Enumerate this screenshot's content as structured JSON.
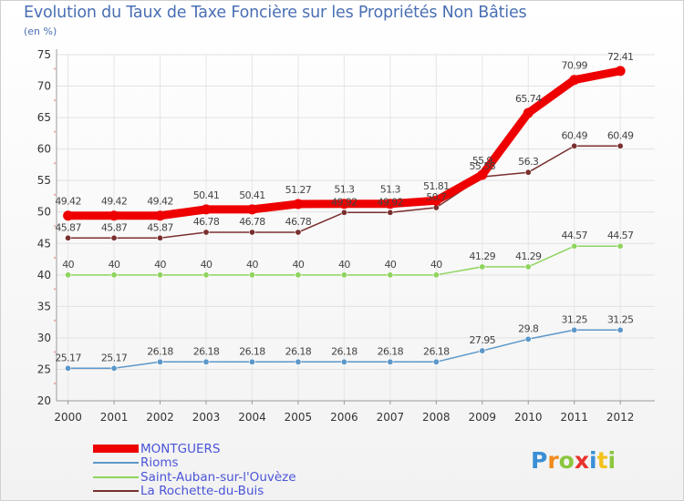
{
  "chart_data": {
    "type": "line",
    "title": "Evolution du Taux de Taxe Foncière sur les Propriétés Non Bâties",
    "subtitle": "(en %)",
    "xlabel": "",
    "ylabel": "(en %)",
    "categories": [
      "2000",
      "2001",
      "2002",
      "2003",
      "2004",
      "2005",
      "2006",
      "2007",
      "2008",
      "2009",
      "2010",
      "2011",
      "2012"
    ],
    "ylim": [
      20,
      75
    ],
    "yticks": [
      "20",
      "25",
      "30",
      "35",
      "40",
      "45",
      "50",
      "55",
      "60",
      "65",
      "70",
      "75"
    ],
    "grid": true,
    "legend_position": "bottom-left",
    "series": [
      {
        "name": "MONTGUERS",
        "color": "#ee0000",
        "values": [
          49.42,
          49.42,
          49.42,
          50.41,
          50.41,
          51.27,
          51.3,
          51.3,
          51.81,
          55.9,
          65.74,
          70.99,
          72.41
        ],
        "labels": [
          "49.42",
          "49.42",
          "49.42",
          "50.41",
          "50.41",
          "51.27",
          "51.3",
          "51.3",
          "51.81",
          "55.9",
          "65.74",
          "70.99",
          "72.41"
        ]
      },
      {
        "name": "Rioms",
        "color": "#5b97c9",
        "values": [
          25.17,
          25.17,
          26.18,
          26.18,
          26.18,
          26.18,
          26.18,
          26.18,
          26.18,
          27.95,
          29.8,
          31.25,
          31.25
        ],
        "labels": [
          "25.17",
          "25.17",
          "26.18",
          "26.18",
          "26.18",
          "26.18",
          "26.18",
          "26.18",
          "26.18",
          "27.95",
          "29.8",
          "31.25",
          "31.25"
        ]
      },
      {
        "name": "Saint-Auban-sur-l'Ouvèze",
        "color": "#8fd45e",
        "values": [
          40,
          40,
          40,
          40,
          40,
          40,
          40,
          40,
          40,
          41.29,
          41.29,
          44.57,
          44.57
        ],
        "labels": [
          "40",
          "40",
          "40",
          "40",
          "40",
          "40",
          "40",
          "40",
          "40",
          "41.29",
          "41.29",
          "44.57",
          "44.57"
        ]
      },
      {
        "name": "La Rochette-du-Buis",
        "color": "#7a2f2f",
        "values": [
          45.87,
          45.87,
          45.87,
          46.78,
          46.78,
          46.78,
          49.92,
          49.92,
          50.7,
          55.58,
          56.3,
          60.49,
          60.49
        ],
        "labels": [
          "45.87",
          "45.87",
          "45.87",
          "46.78",
          "46.78",
          "46.78",
          "49.92",
          "49.92",
          "50.7",
          "55.58",
          "56.3",
          "60.49",
          "60.49"
        ]
      }
    ]
  },
  "logo": {
    "text": "Proxiti",
    "letter_colors": [
      "#3a8fd6",
      "#f08a1c",
      "#8cc63e",
      "#e8322d",
      "#3a8fd6",
      "#f3c21c",
      "#8cc63e"
    ]
  }
}
